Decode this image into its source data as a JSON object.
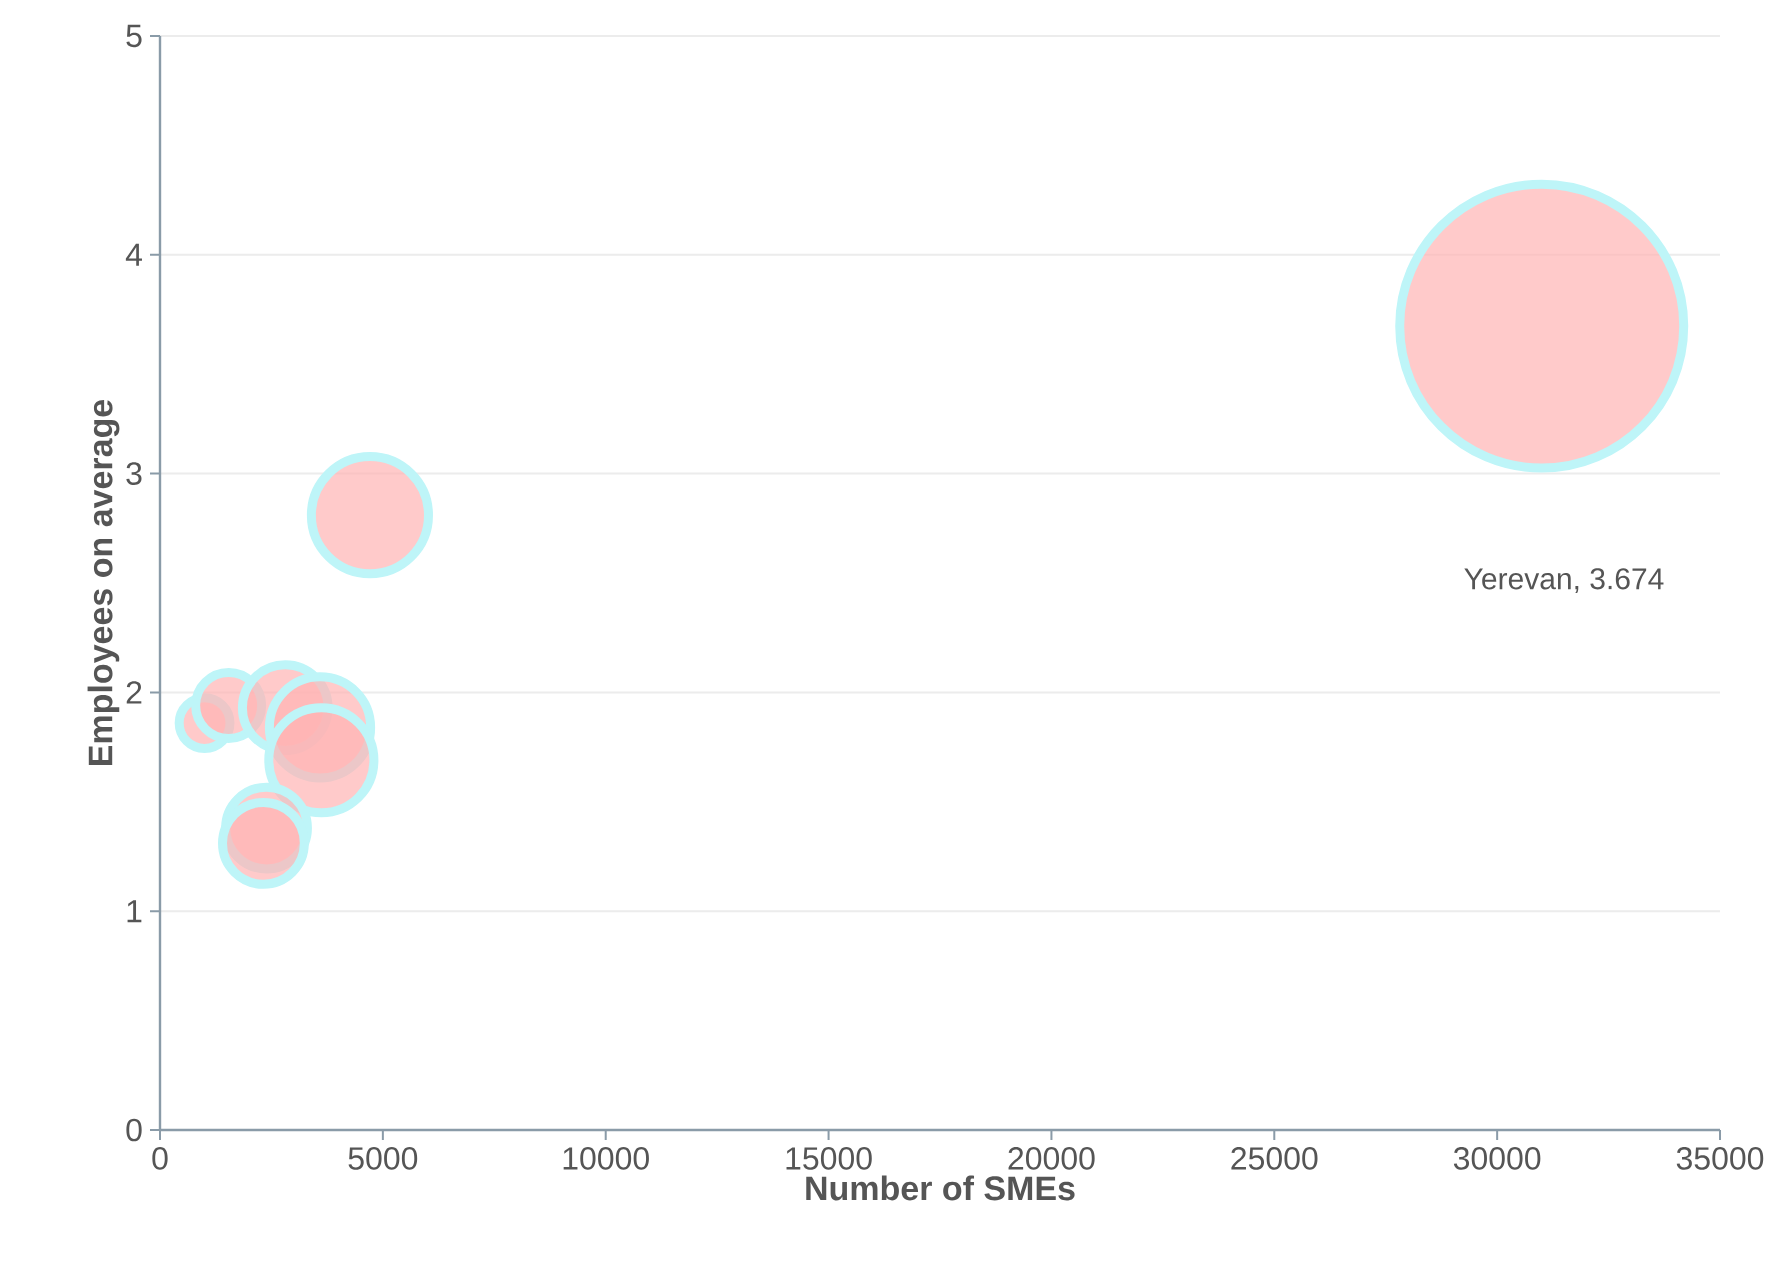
{
  "chart_data": {
    "type": "bubble",
    "xlabel": "Number of SMEs",
    "ylabel": "Employees on average",
    "x": [
      31000,
      4710,
      1000,
      1540,
      2810,
      3590,
      3620,
      2390,
      2320
    ],
    "values": [
      3.674,
      2.81,
      1.86,
      1.94,
      1.93,
      1.84,
      1.69,
      1.38,
      1.31
    ],
    "sizes": [
      1,
      0.17,
      0.032,
      0.054,
      0.091,
      0.127,
      0.137,
      0.083,
      0.083
    ],
    "color": "#ffb3b3",
    "xlim": [
      0,
      35000
    ],
    "xticks": [
      0,
      5000,
      10000,
      15000,
      20000,
      25000,
      30000,
      35000
    ],
    "ylim": [
      0,
      5
    ],
    "yticks": [
      0,
      1,
      2,
      3,
      4,
      5
    ],
    "grid": "y",
    "annotations": [
      "Yerevan, 3.674"
    ]
  }
}
